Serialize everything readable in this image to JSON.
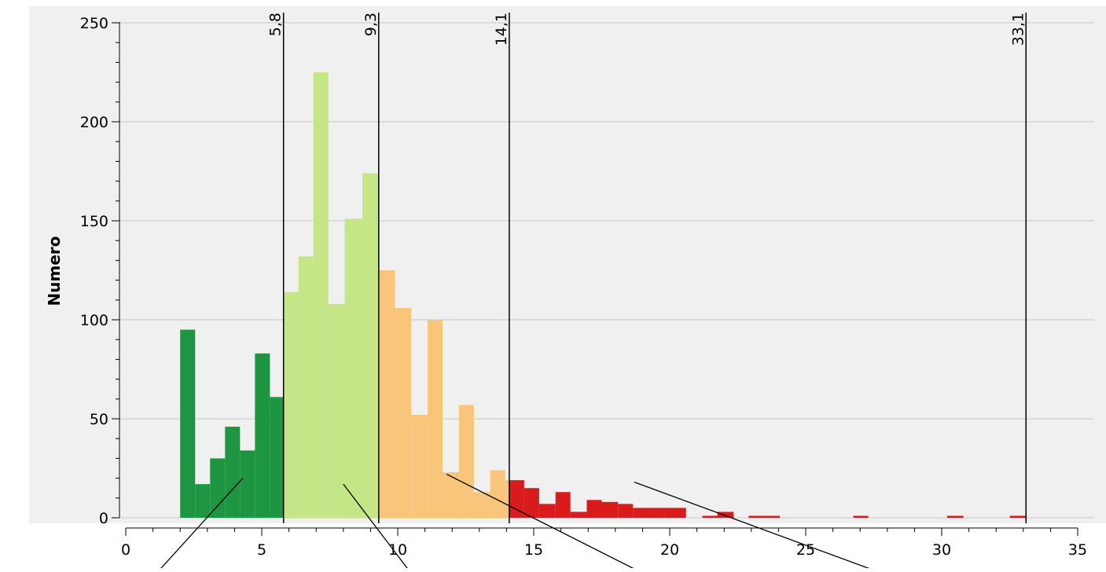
{
  "chart_data": {
    "type": "bar",
    "title": "",
    "xlabel": "",
    "ylabel": "Numero",
    "xlim": [
      0,
      35
    ],
    "ylim": [
      0,
      250
    ],
    "xticks": [
      0,
      5,
      10,
      15,
      20,
      25,
      30,
      35
    ],
    "xtick_labels": [
      "0",
      "5",
      "10",
      "15",
      "20",
      "25",
      "30",
      "35"
    ],
    "yticks": [
      0,
      50,
      100,
      150,
      200,
      250
    ],
    "ytick_labels": [
      "0",
      "50",
      "100",
      "150",
      "200",
      "250"
    ],
    "grid": "horizontal",
    "legend": "none",
    "class_breaks": [
      {
        "value": 5.8,
        "label": "5,8"
      },
      {
        "value": 9.3,
        "label": "9,3"
      },
      {
        "value": 14.1,
        "label": "14,1"
      },
      {
        "value": 33.1,
        "label": "33,1"
      }
    ],
    "class_colors": [
      "#1e9641",
      "#c4e687",
      "#f9c57a",
      "#d91b1b"
    ],
    "bins": [
      {
        "x0": 2.0,
        "x1": 2.55,
        "value": 95,
        "class": 0
      },
      {
        "x0": 2.55,
        "x1": 3.1,
        "value": 17,
        "class": 0
      },
      {
        "x0": 3.1,
        "x1": 3.65,
        "value": 30,
        "class": 0
      },
      {
        "x0": 3.65,
        "x1": 4.2,
        "value": 46,
        "class": 0
      },
      {
        "x0": 4.2,
        "x1": 4.75,
        "value": 34,
        "class": 0
      },
      {
        "x0": 4.75,
        "x1": 5.3,
        "value": 83,
        "class": 0
      },
      {
        "x0": 5.3,
        "x1": 5.8,
        "value": 61,
        "class": 0
      },
      {
        "x0": 5.8,
        "x1": 6.35,
        "value": 114,
        "class": 1
      },
      {
        "x0": 6.35,
        "x1": 6.9,
        "value": 132,
        "class": 1
      },
      {
        "x0": 6.9,
        "x1": 7.45,
        "value": 225,
        "class": 1
      },
      {
        "x0": 7.45,
        "x1": 8.05,
        "value": 108,
        "class": 1
      },
      {
        "x0": 8.05,
        "x1": 8.7,
        "value": 151,
        "class": 1
      },
      {
        "x0": 8.7,
        "x1": 9.3,
        "value": 174,
        "class": 1
      },
      {
        "x0": 9.3,
        "x1": 9.9,
        "value": 125,
        "class": 2
      },
      {
        "x0": 9.9,
        "x1": 10.5,
        "value": 106,
        "class": 2
      },
      {
        "x0": 10.5,
        "x1": 11.1,
        "value": 52,
        "class": 2
      },
      {
        "x0": 11.1,
        "x1": 11.65,
        "value": 100,
        "class": 2
      },
      {
        "x0": 11.65,
        "x1": 12.25,
        "value": 23,
        "class": 2
      },
      {
        "x0": 12.25,
        "x1": 12.8,
        "value": 57,
        "class": 2
      },
      {
        "x0": 12.8,
        "x1": 13.4,
        "value": 13,
        "class": 2
      },
      {
        "x0": 13.4,
        "x1": 13.95,
        "value": 24,
        "class": 2
      },
      {
        "x0": 13.95,
        "x1": 14.1,
        "value": 19,
        "class": 2
      },
      {
        "x0": 14.1,
        "x1": 14.65,
        "value": 19,
        "class": 3
      },
      {
        "x0": 14.65,
        "x1": 15.2,
        "value": 15,
        "class": 3
      },
      {
        "x0": 15.2,
        "x1": 15.8,
        "value": 7,
        "class": 3
      },
      {
        "x0": 15.8,
        "x1": 16.35,
        "value": 13,
        "class": 3
      },
      {
        "x0": 16.35,
        "x1": 16.95,
        "value": 3,
        "class": 3
      },
      {
        "x0": 16.95,
        "x1": 17.5,
        "value": 9,
        "class": 3
      },
      {
        "x0": 17.5,
        "x1": 18.1,
        "value": 8,
        "class": 3
      },
      {
        "x0": 18.1,
        "x1": 18.65,
        "value": 7,
        "class": 3
      },
      {
        "x0": 18.65,
        "x1": 19.25,
        "value": 5,
        "class": 3
      },
      {
        "x0": 19.25,
        "x1": 19.8,
        "value": 5,
        "class": 3
      },
      {
        "x0": 19.8,
        "x1": 20.6,
        "value": 5,
        "class": 3
      },
      {
        "x0": 21.2,
        "x1": 21.75,
        "value": 1,
        "class": 3
      },
      {
        "x0": 21.75,
        "x1": 22.35,
        "value": 3,
        "class": 3
      },
      {
        "x0": 22.9,
        "x1": 23.5,
        "value": 1,
        "class": 3
      },
      {
        "x0": 23.5,
        "x1": 24.05,
        "value": 1,
        "class": 3
      },
      {
        "x0": 26.75,
        "x1": 27.3,
        "value": 1,
        "class": 3
      },
      {
        "x0": 30.2,
        "x1": 30.8,
        "value": 1,
        "class": 3
      },
      {
        "x0": 32.5,
        "x1": 33.1,
        "value": 1,
        "class": 3
      }
    ],
    "annotations": [
      {
        "from": [
          4.3,
          20
        ],
        "to": [
          1.0,
          -30
        ]
      },
      {
        "from": [
          8.0,
          17
        ],
        "to": [
          10.6,
          -30
        ]
      },
      {
        "from": [
          11.8,
          22
        ],
        "to": [
          19.3,
          -30
        ]
      },
      {
        "from": [
          18.7,
          18
        ],
        "to": [
          28.2,
          -30
        ]
      }
    ]
  }
}
